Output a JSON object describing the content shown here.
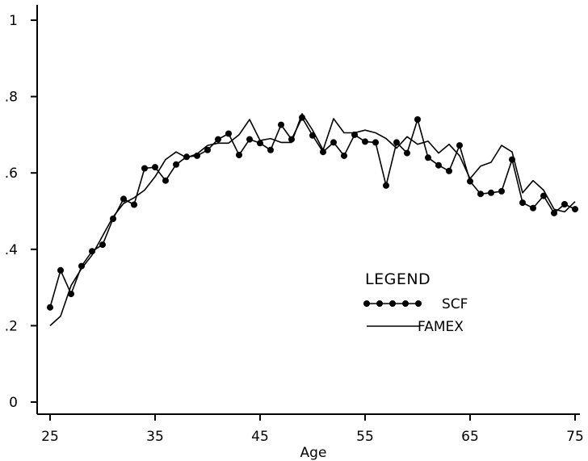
{
  "chart_data": {
    "type": "line",
    "title": "",
    "xlabel": "Age",
    "ylabel": "",
    "xlim": [
      25,
      75
    ],
    "ylim": [
      0,
      1
    ],
    "xticks": [
      25,
      35,
      45,
      55,
      65,
      75
    ],
    "yticks": [
      0,
      0.2,
      0.4,
      0.6,
      0.8,
      1
    ],
    "ytick_labels": [
      "0",
      ".2",
      ".4",
      ".6",
      ".8",
      "1"
    ],
    "grid": false,
    "legend": {
      "title": "LEGEND",
      "placement": "center-right",
      "entries": [
        "SCF",
        "FAMEX"
      ]
    },
    "series": [
      {
        "name": "SCF",
        "marker": "dot",
        "x": [
          25,
          26,
          27,
          28,
          29,
          30,
          31,
          32,
          33,
          34,
          35,
          36,
          37,
          38,
          39,
          40,
          41,
          42,
          43,
          44,
          45,
          46,
          47,
          48,
          49,
          50,
          51,
          52,
          53,
          54,
          55,
          56,
          57,
          58,
          59,
          60,
          61,
          62,
          63,
          64,
          65,
          66,
          67,
          68,
          69,
          70,
          71,
          72,
          73,
          74,
          75
        ],
        "values": [
          0.248,
          0.345,
          0.283,
          0.356,
          0.395,
          0.412,
          0.48,
          0.532,
          0.517,
          0.612,
          0.615,
          0.58,
          0.622,
          0.642,
          0.645,
          0.66,
          0.688,
          0.703,
          0.647,
          0.688,
          0.678,
          0.66,
          0.726,
          0.688,
          0.745,
          0.698,
          0.655,
          0.68,
          0.645,
          0.7,
          0.682,
          0.68,
          0.567,
          0.68,
          0.652,
          0.74,
          0.64,
          0.62,
          0.605,
          0.672,
          0.578,
          0.545,
          0.548,
          0.552,
          0.635,
          0.522,
          0.508,
          0.54,
          0.495,
          0.518,
          0.505
        ]
      },
      {
        "name": "FAMEX",
        "marker": "none",
        "x": [
          25,
          26,
          27,
          28,
          29,
          30,
          31,
          32,
          33,
          34,
          35,
          36,
          37,
          38,
          39,
          40,
          41,
          42,
          43,
          44,
          45,
          46,
          47,
          48,
          49,
          50,
          51,
          52,
          53,
          54,
          55,
          56,
          57,
          58,
          59,
          60,
          61,
          62,
          63,
          64,
          65,
          66,
          67,
          68,
          69,
          70,
          71,
          72,
          73,
          74,
          75
        ],
        "values": [
          0.2,
          0.225,
          0.305,
          0.35,
          0.385,
          0.435,
          0.485,
          0.52,
          0.535,
          0.555,
          0.59,
          0.635,
          0.655,
          0.64,
          0.65,
          0.672,
          0.678,
          0.678,
          0.7,
          0.74,
          0.685,
          0.69,
          0.68,
          0.68,
          0.755,
          0.712,
          0.66,
          0.742,
          0.705,
          0.705,
          0.712,
          0.705,
          0.69,
          0.665,
          0.695,
          0.675,
          0.683,
          0.652,
          0.675,
          0.645,
          0.585,
          0.618,
          0.628,
          0.672,
          0.655,
          0.548,
          0.58,
          0.555,
          0.505,
          0.498,
          0.525
        ]
      }
    ]
  }
}
